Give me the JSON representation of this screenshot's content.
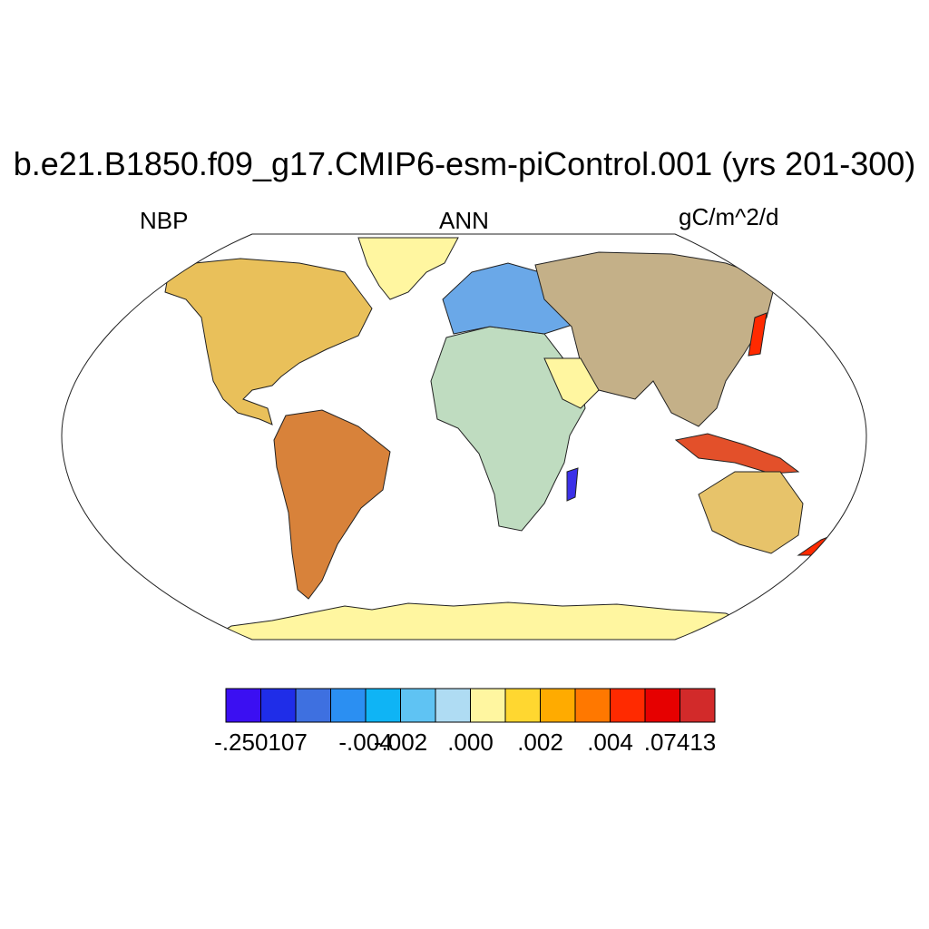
{
  "title": "b.e21.B1850.f09_g17.CMIP6-esm-piControl.001 (yrs 201-300)",
  "left_label": "NBP",
  "center_label": "ANN",
  "right_label": "gC/m^2/d",
  "colorbar": {
    "colors": [
      "#3b0ff2",
      "#1f2de8",
      "#3e70e0",
      "#2b8ff2",
      "#0fb4f5",
      "#5fc3f3",
      "#afdcf3",
      "#fff6a0",
      "#ffd730",
      "#ffab00",
      "#ff7800",
      "#ff2a00",
      "#e60000",
      "#d22a2a"
    ],
    "labels": [
      {
        "text": "-.250107",
        "boundary": 1
      },
      {
        "text": "-.004",
        "boundary": 4
      },
      {
        "text": "-.002",
        "boundary": 5
      },
      {
        "text": ".000",
        "boundary": 7
      },
      {
        "text": ".002",
        "boundary": 9
      },
      {
        "text": ".004",
        "boundary": 11
      },
      {
        "text": ".07413",
        "boundary": 13
      }
    ]
  },
  "map": {
    "projection": "robinson",
    "ocean_color": "#ffffff",
    "land_base_color": "#fff6a0"
  }
}
